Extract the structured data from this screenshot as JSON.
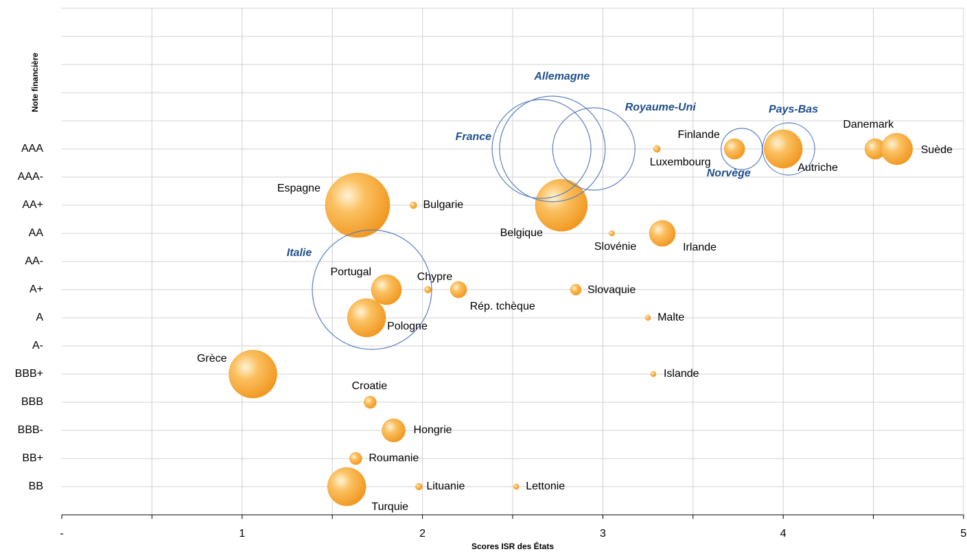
{
  "chart_data": {
    "type": "bubble",
    "xlabel": "Scores ISR des États",
    "ylabel": "Note financière",
    "xlim": [
      0,
      5
    ],
    "xticks": [
      {
        "value": 0,
        "label": "-"
      },
      {
        "value": 0.5,
        "label": null
      },
      1,
      {
        "value": 1.5,
        "label": null
      },
      2,
      {
        "value": 2.5,
        "label": null
      },
      3,
      {
        "value": 3.5,
        "label": null
      },
      4,
      {
        "value": 4.5,
        "label": null
      },
      5
    ],
    "ylim": [
      0,
      18
    ],
    "yticks": [
      {
        "value": 1,
        "label": "BB"
      },
      {
        "value": 2,
        "label": "BB+"
      },
      {
        "value": 3,
        "label": "BBB-"
      },
      {
        "value": 4,
        "label": "BBB"
      },
      {
        "value": 5,
        "label": "BBB+"
      },
      {
        "value": 6,
        "label": "A-"
      },
      {
        "value": 7,
        "label": "A"
      },
      {
        "value": 8,
        "label": "A+"
      },
      {
        "value": 9,
        "label": "AA-"
      },
      {
        "value": 10,
        "label": "AA"
      },
      {
        "value": 11,
        "label": "AA+"
      },
      {
        "value": 12,
        "label": "AAA-"
      },
      {
        "value": 13,
        "label": "AAA"
      },
      {
        "value": 14,
        "label": null
      },
      {
        "value": 15,
        "label": null
      },
      {
        "value": 16,
        "label": null
      },
      {
        "value": 17,
        "label": null
      },
      {
        "value": 18,
        "label": null
      }
    ],
    "grid": true,
    "series": [
      {
        "color": "#f29a1e",
        "style": "filled",
        "labels": [
          "Espagne",
          "Bulgarie",
          "Belgique",
          "Luxembourg",
          "Finlande",
          "Autriche",
          "Danemark",
          "Suède",
          "Slovénie",
          "Irlande",
          "Portugal",
          "Chypre",
          "Rép. tchèque",
          "Slovaquie",
          "Pologne",
          "Malte",
          "Grèce",
          "Islande",
          "Croatie",
          "Hongrie",
          "Roumanie",
          "Turquie",
          "Lituanie",
          "Lettonie"
        ],
        "x": [
          1.64,
          1.95,
          2.77,
          3.3,
          3.73,
          4.0,
          4.51,
          4.63,
          3.05,
          3.33,
          1.8,
          2.03,
          2.2,
          2.85,
          1.69,
          3.25,
          1.06,
          3.28,
          1.71,
          1.84,
          1.63,
          1.58,
          1.98,
          2.52
        ],
        "values": [
          11,
          11,
          11,
          13,
          13,
          13,
          13,
          13,
          10,
          10,
          8,
          8,
          8,
          8,
          7,
          7,
          5,
          5,
          4,
          3,
          2,
          1,
          1,
          1
        ],
        "sizes": [
          47,
          5,
          38,
          5,
          15,
          28,
          15,
          23,
          4,
          19,
          22,
          5,
          12,
          8,
          28,
          4,
          35,
          4,
          9,
          17,
          9,
          28,
          5,
          4
        ]
      },
      {
        "color": "#5b7fbf",
        "style": "hollow",
        "labels": [
          "France",
          "Allemagne",
          "Royaume-Uni",
          "Norvège",
          "Pays-Bas",
          "Italie"
        ],
        "x": [
          2.66,
          2.72,
          2.95,
          3.77,
          4.03,
          1.72
        ],
        "values": [
          13,
          13,
          13,
          13,
          13,
          8
        ],
        "sizes": [
          72,
          77,
          60,
          30,
          38,
          87
        ]
      }
    ]
  }
}
